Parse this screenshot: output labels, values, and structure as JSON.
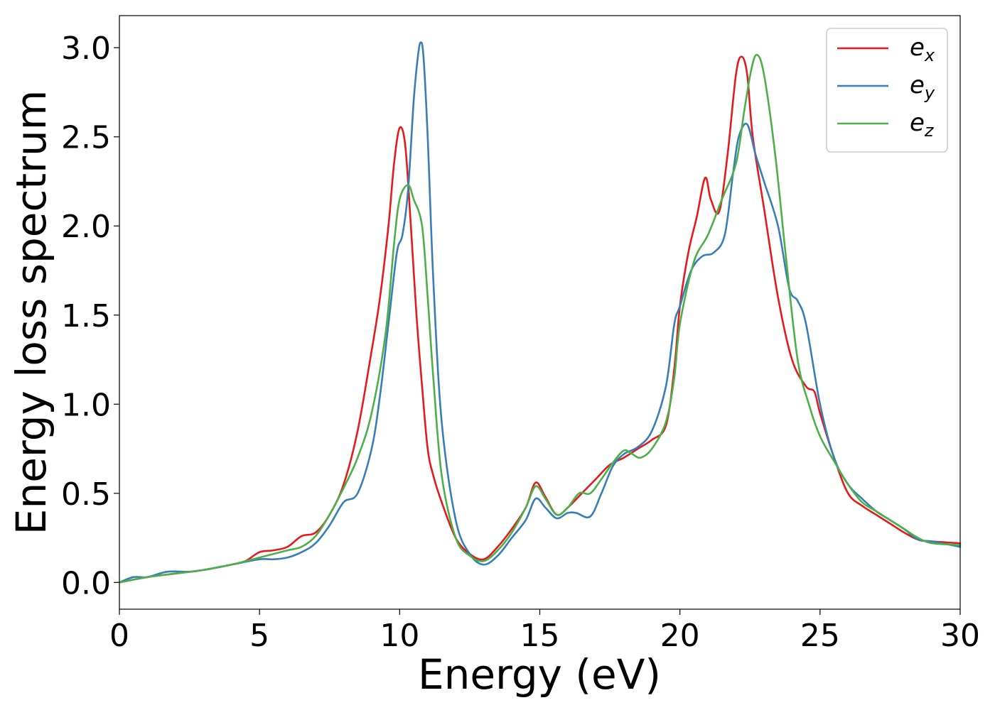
{
  "chart_data": {
    "type": "line",
    "title": "",
    "xlabel": "Energy (eV)",
    "ylabel": "Energy loss spectrum",
    "xlim": [
      0,
      30
    ],
    "ylim": [
      -0.15,
      3.18
    ],
    "xticks": [
      0,
      5,
      10,
      15,
      20,
      25,
      30
    ],
    "xtick_labels": [
      "0",
      "5",
      "10",
      "15",
      "20",
      "25",
      "30"
    ],
    "yticks": [
      0.0,
      0.5,
      1.0,
      1.5,
      2.0,
      2.5,
      3.0
    ],
    "ytick_labels": [
      "0.0",
      "0.5",
      "1.0",
      "1.5",
      "2.0",
      "2.5",
      "3.0"
    ],
    "grid": false,
    "legend_position": "top-right",
    "series": [
      {
        "name": "ex",
        "name_base": "e",
        "name_sub": "x",
        "color": "#e41a1c",
        "x": [
          0,
          1,
          2,
          3,
          4,
          4.5,
          5,
          5.5,
          6,
          6.5,
          7,
          7.5,
          8,
          8.5,
          9,
          9.3,
          9.6,
          9.8,
          10.0,
          10.2,
          10.4,
          10.6,
          10.8,
          11.0,
          11.2,
          11.5,
          12,
          12.5,
          13,
          13.5,
          14,
          14.5,
          14.85,
          15.2,
          15.6,
          16,
          16.5,
          17,
          17.5,
          18,
          18.5,
          19,
          19.5,
          19.8,
          20,
          20.3,
          20.6,
          20.9,
          21.1,
          21.4,
          21.7,
          22,
          22.2,
          22.4,
          22.6,
          23,
          23.5,
          24,
          24.5,
          24.8,
          25,
          25.5,
          26,
          26.5,
          27,
          27.5,
          28,
          28.5,
          29,
          30
        ],
        "y": [
          0.0,
          0.03,
          0.05,
          0.07,
          0.1,
          0.12,
          0.17,
          0.18,
          0.2,
          0.26,
          0.28,
          0.38,
          0.55,
          0.85,
          1.3,
          1.6,
          2.0,
          2.35,
          2.55,
          2.45,
          2.0,
          1.5,
          1.1,
          0.75,
          0.6,
          0.45,
          0.25,
          0.16,
          0.13,
          0.2,
          0.3,
          0.42,
          0.56,
          0.48,
          0.38,
          0.42,
          0.5,
          0.58,
          0.66,
          0.7,
          0.75,
          0.8,
          0.88,
          1.2,
          1.55,
          1.85,
          2.05,
          2.27,
          2.15,
          2.08,
          2.4,
          2.85,
          2.95,
          2.85,
          2.5,
          2.1,
          1.6,
          1.25,
          1.1,
          1.07,
          0.95,
          0.7,
          0.5,
          0.43,
          0.38,
          0.33,
          0.28,
          0.24,
          0.23,
          0.22
        ]
      },
      {
        "name": "ey",
        "name_base": "e",
        "name_sub": "y",
        "color": "#377eb8",
        "x": [
          0,
          0.5,
          1,
          1.7,
          2.5,
          3,
          4,
          5,
          5.5,
          6,
          6.5,
          7,
          7.5,
          8,
          8.5,
          9,
          9.3,
          9.6,
          9.9,
          10.1,
          10.3,
          10.5,
          10.65,
          10.75,
          10.85,
          11.0,
          11.2,
          11.5,
          12,
          12.5,
          13,
          13.5,
          14,
          14.5,
          14.85,
          15.2,
          15.6,
          16,
          16.3,
          16.8,
          17.2,
          17.6,
          18,
          18.5,
          19,
          19.5,
          19.8,
          20,
          20.4,
          20.8,
          21.2,
          21.6,
          21.9,
          22.1,
          22.4,
          22.7,
          23,
          23.5,
          23.9,
          24.2,
          24.5,
          25,
          25.5,
          26,
          26.5,
          27,
          27.5,
          28,
          28.5,
          29,
          30
        ],
        "y": [
          0.0,
          0.03,
          0.03,
          0.06,
          0.06,
          0.07,
          0.1,
          0.13,
          0.13,
          0.14,
          0.17,
          0.22,
          0.32,
          0.45,
          0.5,
          0.75,
          1.05,
          1.45,
          1.85,
          1.95,
          2.2,
          2.7,
          2.95,
          3.03,
          2.95,
          2.5,
          1.7,
          0.9,
          0.35,
          0.16,
          0.1,
          0.15,
          0.25,
          0.35,
          0.47,
          0.42,
          0.36,
          0.39,
          0.39,
          0.37,
          0.5,
          0.65,
          0.72,
          0.76,
          0.85,
          1.1,
          1.45,
          1.55,
          1.75,
          1.83,
          1.85,
          1.95,
          2.3,
          2.5,
          2.57,
          2.4,
          2.25,
          2.0,
          1.65,
          1.58,
          1.45,
          1.0,
          0.7,
          0.55,
          0.47,
          0.4,
          0.35,
          0.3,
          0.24,
          0.23,
          0.2
        ]
      },
      {
        "name": "ez",
        "name_base": "e",
        "name_sub": "z",
        "color": "#4daf4a",
        "x": [
          0,
          1,
          2,
          3,
          4,
          5,
          6,
          6.5,
          7,
          7.5,
          8,
          8.5,
          9,
          9.5,
          9.8,
          10.0,
          10.3,
          10.5,
          10.8,
          11.0,
          11.2,
          11.5,
          12,
          12.5,
          13,
          13.5,
          14,
          14.5,
          14.85,
          15.2,
          15.6,
          16,
          16.4,
          16.8,
          17.2,
          17.6,
          18,
          18.3,
          18.6,
          19,
          19.5,
          19.8,
          20,
          20.5,
          21,
          21.5,
          22,
          22.3,
          22.55,
          22.75,
          23,
          23.4,
          23.8,
          24.2,
          24.6,
          25,
          25.5,
          26,
          26.5,
          27,
          27.5,
          28,
          28.5,
          29,
          30
        ],
        "y": [
          0.0,
          0.03,
          0.05,
          0.07,
          0.1,
          0.14,
          0.18,
          0.2,
          0.26,
          0.38,
          0.53,
          0.7,
          0.95,
          1.4,
          1.9,
          2.15,
          2.23,
          2.15,
          2.0,
          1.6,
          1.15,
          0.6,
          0.25,
          0.15,
          0.12,
          0.18,
          0.28,
          0.42,
          0.54,
          0.47,
          0.38,
          0.42,
          0.5,
          0.5,
          0.58,
          0.67,
          0.74,
          0.72,
          0.7,
          0.75,
          0.9,
          1.15,
          1.45,
          1.8,
          1.95,
          2.15,
          2.35,
          2.65,
          2.88,
          2.96,
          2.85,
          2.4,
          1.8,
          1.25,
          1.0,
          0.82,
          0.68,
          0.55,
          0.45,
          0.4,
          0.35,
          0.3,
          0.25,
          0.22,
          0.21
        ]
      }
    ]
  }
}
